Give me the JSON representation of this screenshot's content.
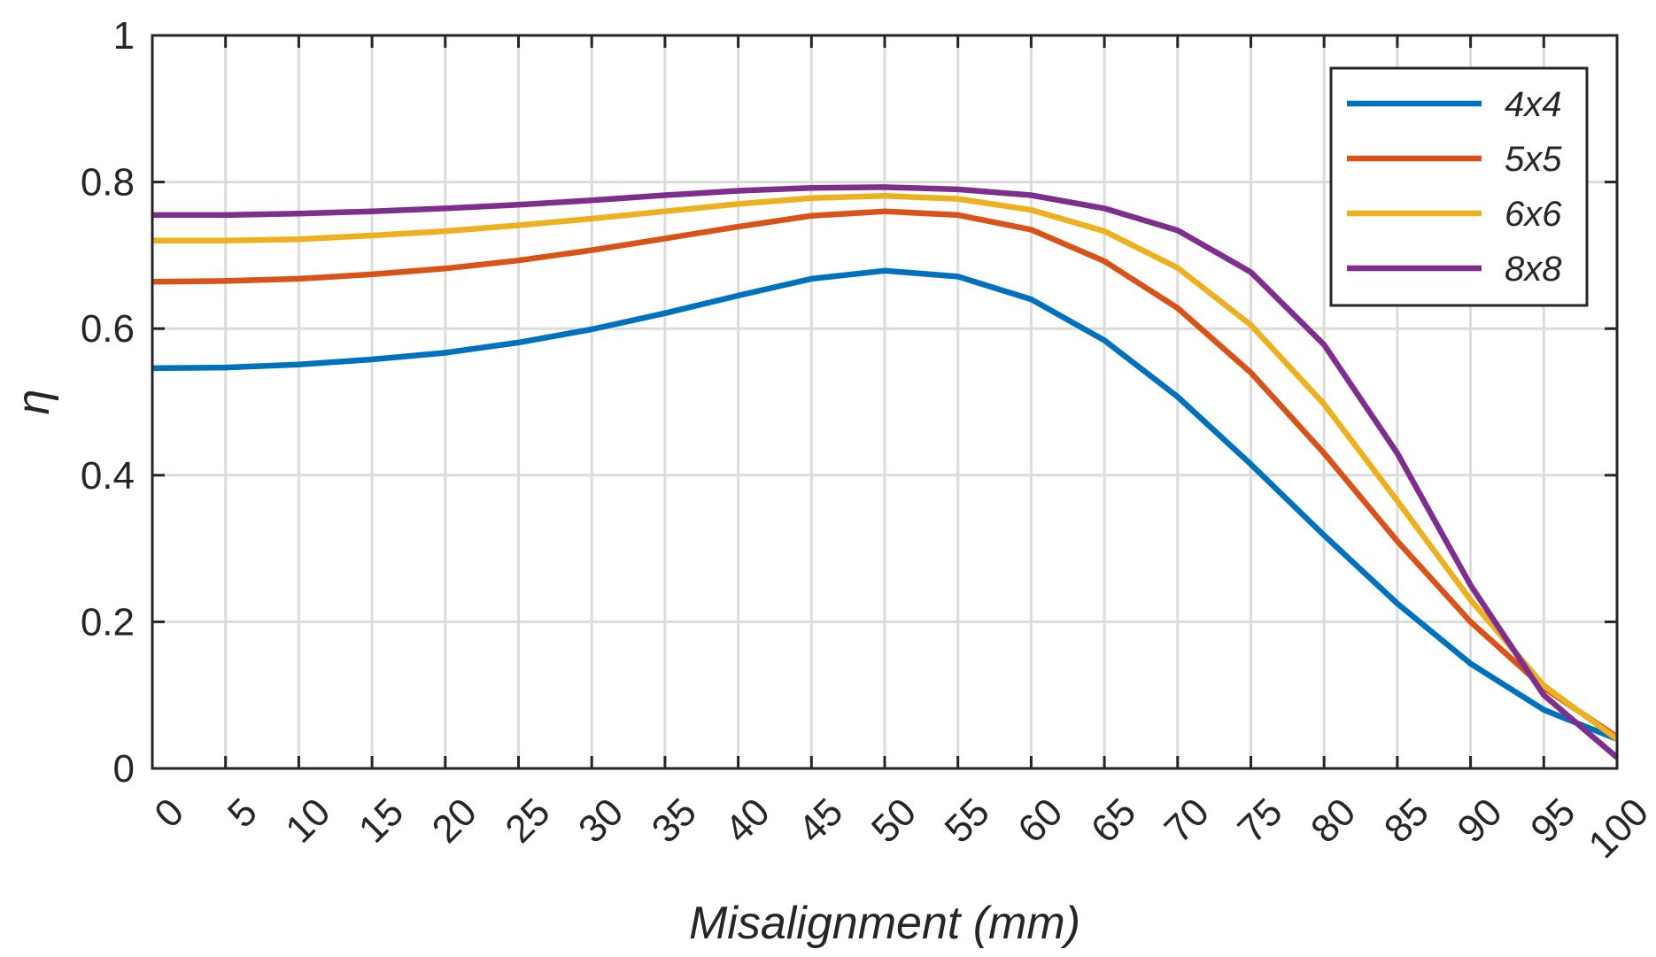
{
  "chart_data": {
    "type": "line",
    "title": "",
    "xlabel": "Misalignment (mm)",
    "ylabel": "η",
    "xlim": [
      0,
      100
    ],
    "ylim": [
      0,
      1
    ],
    "grid": true,
    "legend_position": "top-right",
    "x": [
      0,
      5,
      10,
      15,
      20,
      25,
      30,
      35,
      40,
      45,
      50,
      55,
      60,
      65,
      70,
      75,
      80,
      85,
      90,
      95,
      100
    ],
    "x_tick_labels": [
      "0",
      "5",
      "10",
      "15",
      "20",
      "25",
      "30",
      "35",
      "40",
      "45",
      "50",
      "55",
      "60",
      "65",
      "70",
      "75",
      "80",
      "85",
      "90",
      "95",
      "100"
    ],
    "y_ticks": [
      0,
      0.2,
      0.4,
      0.6,
      0.8,
      1
    ],
    "y_tick_labels": [
      "0",
      "0.2",
      "0.4",
      "0.6",
      "0.8",
      "1"
    ],
    "series": [
      {
        "name": "4x4",
        "color": "#0072BD",
        "values": [
          0.546,
          0.547,
          0.551,
          0.558,
          0.567,
          0.581,
          0.599,
          0.621,
          0.645,
          0.668,
          0.679,
          0.671,
          0.64,
          0.584,
          0.507,
          0.415,
          0.318,
          0.225,
          0.143,
          0.08,
          0.04
        ]
      },
      {
        "name": "5x5",
        "color": "#D95319",
        "values": [
          0.664,
          0.665,
          0.668,
          0.674,
          0.682,
          0.693,
          0.707,
          0.723,
          0.739,
          0.754,
          0.76,
          0.755,
          0.735,
          0.692,
          0.628,
          0.54,
          0.43,
          0.31,
          0.2,
          0.11,
          0.043
        ]
      },
      {
        "name": "6x6",
        "color": "#EDB120",
        "values": [
          0.72,
          0.72,
          0.722,
          0.727,
          0.733,
          0.741,
          0.75,
          0.76,
          0.77,
          0.778,
          0.781,
          0.777,
          0.762,
          0.733,
          0.683,
          0.605,
          0.497,
          0.365,
          0.23,
          0.113,
          0.04
        ]
      },
      {
        "name": "8x8",
        "color": "#7E2F8E",
        "values": [
          0.755,
          0.755,
          0.757,
          0.76,
          0.764,
          0.769,
          0.775,
          0.782,
          0.788,
          0.792,
          0.793,
          0.79,
          0.782,
          0.764,
          0.734,
          0.677,
          0.578,
          0.43,
          0.25,
          0.1,
          0.015
        ]
      }
    ]
  }
}
